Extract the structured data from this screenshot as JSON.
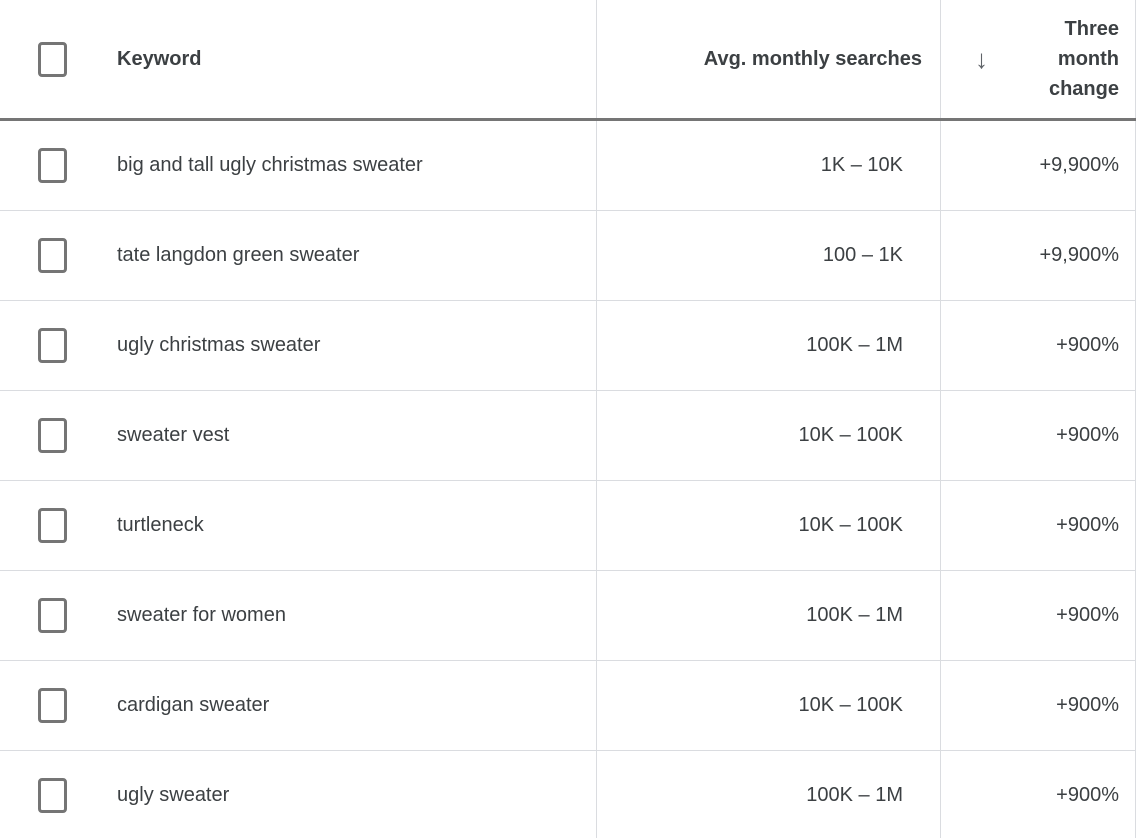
{
  "colors": {
    "text": "#3c4043",
    "header_text": "#3c4043",
    "row_border": "#dadce0",
    "header_border": "#757575",
    "checkbox_border": "#757575",
    "sort_icon": "#5f6368",
    "bg": "#ffffff"
  },
  "table": {
    "header": {
      "keyword_label": "Keyword",
      "avg_label": "Avg. monthly searches",
      "change_label": "Three month change",
      "sort_icon_glyph": "↓",
      "sort_column": "Three month change",
      "sort_direction": "descending"
    },
    "rows": [
      {
        "keyword": "big and tall ugly christmas sweater",
        "avg_monthly_searches": "1K – 10K",
        "three_month_change": "+9,900%"
      },
      {
        "keyword": "tate langdon green sweater",
        "avg_monthly_searches": "100 – 1K",
        "three_month_change": "+9,900%"
      },
      {
        "keyword": "ugly christmas sweater",
        "avg_monthly_searches": "100K – 1M",
        "three_month_change": "+900%"
      },
      {
        "keyword": "sweater vest",
        "avg_monthly_searches": "10K – 100K",
        "three_month_change": "+900%"
      },
      {
        "keyword": "turtleneck",
        "avg_monthly_searches": "10K – 100K",
        "three_month_change": "+900%"
      },
      {
        "keyword": "sweater for women",
        "avg_monthly_searches": "100K – 1M",
        "three_month_change": "+900%"
      },
      {
        "keyword": "cardigan sweater",
        "avg_monthly_searches": "10K – 100K",
        "three_month_change": "+900%"
      },
      {
        "keyword": "ugly sweater",
        "avg_monthly_searches": "100K – 1M",
        "three_month_change": "+900%"
      }
    ]
  }
}
